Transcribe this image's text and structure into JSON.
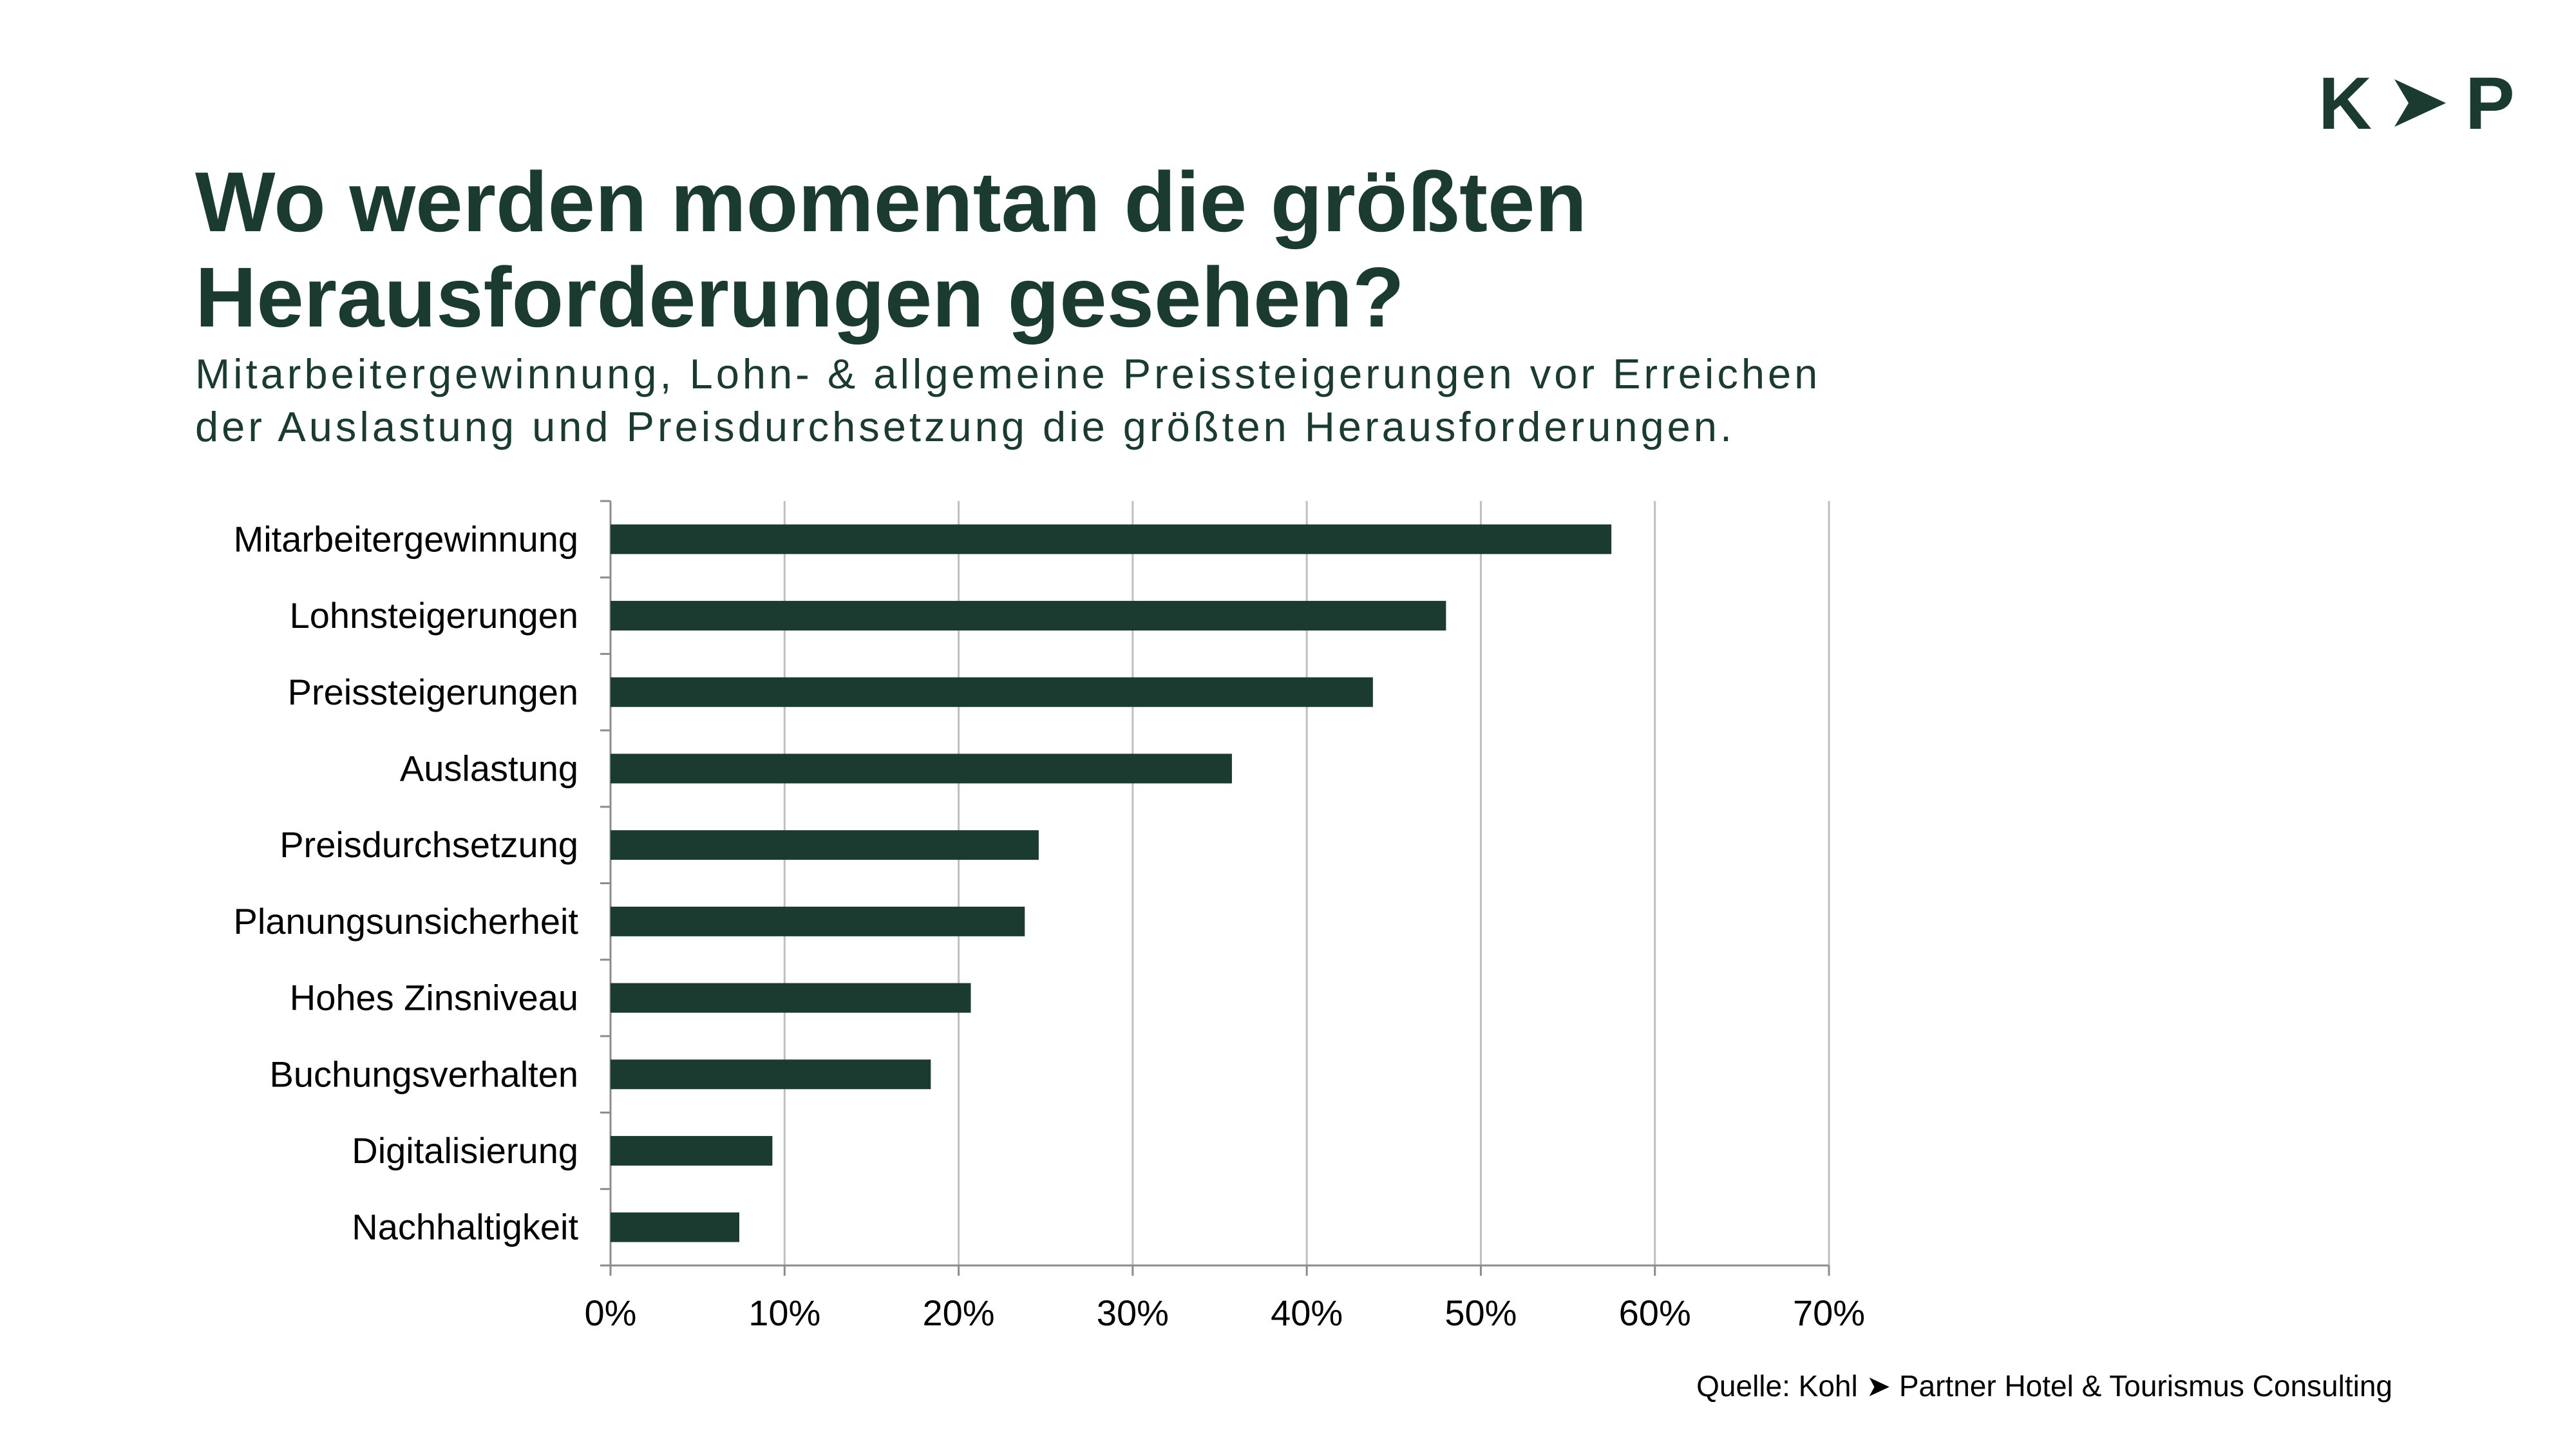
{
  "logo": {
    "left": "K",
    "arrow": "➤",
    "right": "P",
    "color": "#1b3a30"
  },
  "title": {
    "line1": "Wo werden momentan die größten",
    "line2": "Herausforderungen gesehen?"
  },
  "subtitle": {
    "line1": "Mitarbeitergewinnung, Lohn- & allgemeine Preissteigerungen vor Erreichen",
    "line2": "der Auslastung und Preisdurchsetzung die größten Herausforderungen."
  },
  "source": {
    "text": "Quelle: Kohl ➤ Partner Hotel & Tourismus Consulting"
  },
  "colors": {
    "bar": "#1b3a30",
    "grid": "#bfbfbf",
    "axis": "#8c8c8c",
    "label": "#000000"
  },
  "chart_data": {
    "type": "bar",
    "orientation": "horizontal",
    "categories": [
      "Mitarbeitergewinnung",
      "Lohnsteigerungen",
      "Preissteigerungen",
      "Auslastung",
      "Preisdurchsetzung",
      "Planungsunsicherheit",
      "Hohes Zinsniveau",
      "Buchungsverhalten",
      "Digitalisierung",
      "Nachhaltigkeit"
    ],
    "values": [
      57.5,
      48.0,
      43.8,
      35.7,
      24.6,
      23.8,
      20.7,
      18.4,
      9.3,
      7.4
    ],
    "xlim": [
      0,
      70
    ],
    "xticks": [
      0,
      10,
      20,
      30,
      40,
      50,
      60,
      70
    ],
    "xtick_labels": [
      "0%",
      "10%",
      "20%",
      "30%",
      "40%",
      "50%",
      "60%",
      "70%"
    ],
    "unit": "%",
    "grid": true,
    "legend": false
  }
}
